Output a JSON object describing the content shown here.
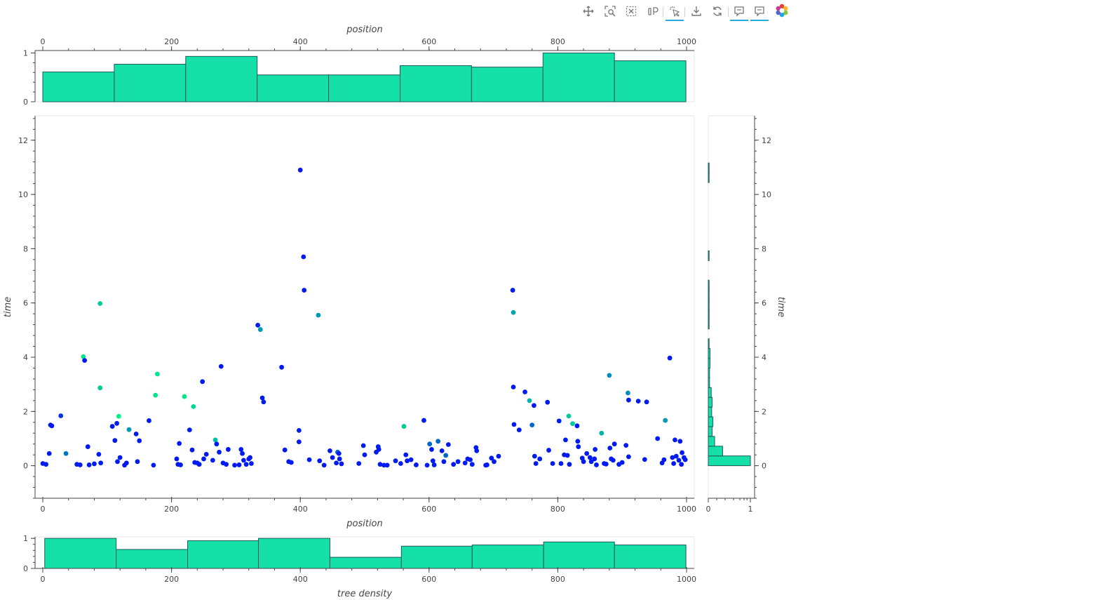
{
  "toolbar": {
    "accent": "#26aae1",
    "tools": [
      {
        "name": "pan-icon",
        "active": true
      },
      {
        "name": "box-zoom-icon",
        "active": false
      },
      {
        "name": "box-select-icon",
        "active": false
      },
      {
        "name": "lasso-select-icon",
        "active": false
      },
      {
        "name": "tap-icon",
        "active": true
      },
      {
        "name": "save-icon",
        "active": false
      },
      {
        "name": "reset-icon",
        "active": false
      },
      {
        "name": "hover-icon",
        "active": true
      },
      {
        "name": "hover-icon",
        "active": true
      },
      {
        "name": "bokeh-logo-icon",
        "active": false
      }
    ]
  },
  "colors": {
    "bar_fill": "#14e0a8",
    "bar_stroke": "#1c5a5c",
    "point_low": "#0000ff",
    "point_high": "#00ff80",
    "frame": "#e5e5e5",
    "axis": "#444444"
  },
  "chart_data": [
    {
      "id": "top-hist",
      "type": "bar",
      "xlabel": "position",
      "ylabel": "",
      "xlim": [
        -12,
        1012
      ],
      "ylim": [
        0,
        1.05
      ],
      "x_ticks": [
        0,
        200,
        400,
        600,
        800,
        1000
      ],
      "y_ticks": [
        0,
        1
      ],
      "x_axis_position": "top",
      "bins": [
        {
          "x0": 0,
          "x1": 111,
          "value": 0.61
        },
        {
          "x0": 111,
          "x1": 222,
          "value": 0.77
        },
        {
          "x0": 222,
          "x1": 333,
          "value": 0.93
        },
        {
          "x0": 333,
          "x1": 444,
          "value": 0.55
        },
        {
          "x0": 444,
          "x1": 555,
          "value": 0.55
        },
        {
          "x0": 555,
          "x1": 666,
          "value": 0.74
        },
        {
          "x0": 666,
          "x1": 777,
          "value": 0.71
        },
        {
          "x0": 777,
          "x1": 888,
          "value": 1.0
        },
        {
          "x0": 888,
          "x1": 999,
          "value": 0.84
        }
      ]
    },
    {
      "id": "scatter",
      "type": "scatter",
      "xlabel": "position",
      "ylabel": "time",
      "xlim": [
        -12,
        1012
      ],
      "ylim": [
        -1.2,
        12.9
      ],
      "x_ticks": [
        0,
        200,
        400,
        600,
        800,
        1000
      ],
      "y_ticks": [
        0,
        2,
        4,
        6,
        8,
        10,
        12
      ],
      "color_note": "point color encodes tree density (blue = low, green = high)",
      "points": [
        [
          0,
          0.08,
          0.1
        ],
        [
          5,
          0.05,
          0.1
        ],
        [
          10,
          0.45,
          0.1
        ],
        [
          12,
          1.5,
          0.1
        ],
        [
          14,
          1.47,
          0.1
        ],
        [
          28,
          1.84,
          0.2
        ],
        [
          36,
          0.45,
          0.45
        ],
        [
          53,
          0.05,
          0.1
        ],
        [
          58,
          0.03,
          0.1
        ],
        [
          63,
          4.02,
          0.9
        ],
        [
          65,
          3.88,
          0.1
        ],
        [
          70,
          0.7,
          0.1
        ],
        [
          72,
          0.03,
          0.1
        ],
        [
          80,
          0.07,
          0.1
        ],
        [
          87,
          0.42,
          0.1
        ],
        [
          89,
          5.98,
          0.8
        ],
        [
          89,
          2.87,
          0.8
        ],
        [
          90,
          0.1,
          0.1
        ],
        [
          108,
          1.45,
          0.1
        ],
        [
          112,
          0.93,
          0.1
        ],
        [
          115,
          1.56,
          0.1
        ],
        [
          116,
          0.15,
          0.1
        ],
        [
          118,
          1.82,
          0.95
        ],
        [
          120,
          0.3,
          0.1
        ],
        [
          127,
          0.02,
          0.1
        ],
        [
          130,
          0.1,
          0.1
        ],
        [
          134,
          1.33,
          0.6
        ],
        [
          145,
          1.17,
          0.1
        ],
        [
          147,
          0.15,
          0.1
        ],
        [
          150,
          0.92,
          0.1
        ],
        [
          165,
          1.66,
          0.1
        ],
        [
          172,
          0.02,
          0.1
        ],
        [
          175,
          2.6,
          0.9
        ],
        [
          178,
          3.38,
          0.9
        ],
        [
          208,
          0.25,
          0.1
        ],
        [
          210,
          0.05,
          0.1
        ],
        [
          212,
          0.82,
          0.1
        ],
        [
          214,
          0.03,
          0.1
        ],
        [
          220,
          2.55,
          0.9
        ],
        [
          228,
          1.32,
          0.1
        ],
        [
          232,
          0.58,
          0.1
        ],
        [
          234,
          2.18,
          0.85
        ],
        [
          236,
          0.12,
          0.1
        ],
        [
          240,
          0.1,
          0.1
        ],
        [
          243,
          0.05,
          0.1
        ],
        [
          248,
          3.1,
          0.1
        ],
        [
          250,
          0.25,
          0.1
        ],
        [
          254,
          0.42,
          0.1
        ],
        [
          264,
          0.2,
          0.1
        ],
        [
          268,
          0.95,
          0.75
        ],
        [
          270,
          0.8,
          0.1
        ],
        [
          274,
          0.5,
          0.1
        ],
        [
          277,
          3.66,
          0.1
        ],
        [
          280,
          0.1,
          0.1
        ],
        [
          285,
          0.05,
          0.1
        ],
        [
          288,
          0.6,
          0.1
        ],
        [
          298,
          0.02,
          0.1
        ],
        [
          305,
          0.03,
          0.1
        ],
        [
          308,
          0.6,
          0.1
        ],
        [
          310,
          0.45,
          0.1
        ],
        [
          312,
          0.2,
          0.1
        ],
        [
          316,
          0.05,
          0.1
        ],
        [
          320,
          0.25,
          0.1
        ],
        [
          322,
          0.3,
          0.1
        ],
        [
          324,
          0.08,
          0.1
        ],
        [
          334,
          5.18,
          0.1
        ],
        [
          338,
          5.02,
          0.6
        ],
        [
          341,
          2.5,
          0.1
        ],
        [
          343,
          2.35,
          0.1
        ],
        [
          371,
          3.63,
          0.1
        ],
        [
          376,
          0.58,
          0.1
        ],
        [
          382,
          0.15,
          0.1
        ],
        [
          386,
          0.12,
          0.1
        ],
        [
          398,
          1.3,
          0.1
        ],
        [
          398,
          0.88,
          0.1
        ],
        [
          400,
          10.9,
          0.1
        ],
        [
          405,
          7.7,
          0.1
        ],
        [
          406,
          6.47,
          0.1
        ],
        [
          414,
          0.22,
          0.1
        ],
        [
          428,
          5.55,
          0.6
        ],
        [
          430,
          0.18,
          0.1
        ],
        [
          437,
          0.02,
          0.1
        ],
        [
          446,
          0.55,
          0.1
        ],
        [
          450,
          0.3,
          0.1
        ],
        [
          456,
          0.1,
          0.1
        ],
        [
          458,
          0.5,
          0.4
        ],
        [
          460,
          0.45,
          0.1
        ],
        [
          461,
          0.25,
          0.1
        ],
        [
          464,
          0.07,
          0.1
        ],
        [
          491,
          0.08,
          0.1
        ],
        [
          498,
          0.74,
          0.1
        ],
        [
          500,
          0.4,
          0.1
        ],
        [
          518,
          0.5,
          0.1
        ],
        [
          521,
          0.7,
          0.1
        ],
        [
          522,
          0.6,
          0.1
        ],
        [
          524,
          0.05,
          0.1
        ],
        [
          530,
          0.02,
          0.1
        ],
        [
          535,
          0.02,
          0.1
        ],
        [
          548,
          0.18,
          0.1
        ],
        [
          556,
          0.08,
          0.1
        ],
        [
          561,
          1.45,
          0.8
        ],
        [
          564,
          0.4,
          0.1
        ],
        [
          566,
          0.18,
          0.1
        ],
        [
          572,
          0.22,
          0.1
        ],
        [
          580,
          0.03,
          0.1
        ],
        [
          592,
          1.67,
          0.1
        ],
        [
          597,
          0.02,
          0.1
        ],
        [
          601,
          0.8,
          0.4
        ],
        [
          604,
          0.6,
          0.1
        ],
        [
          606,
          0.18,
          0.1
        ],
        [
          608,
          0.03,
          0.1
        ],
        [
          614,
          0.9,
          0.4
        ],
        [
          620,
          0.55,
          0.1
        ],
        [
          623,
          0.15,
          0.1
        ],
        [
          626,
          0.38,
          0.4
        ],
        [
          630,
          0.78,
          0.1
        ],
        [
          638,
          0.05,
          0.1
        ],
        [
          645,
          0.15,
          0.1
        ],
        [
          656,
          0.1,
          0.1
        ],
        [
          660,
          0.25,
          0.1
        ],
        [
          664,
          0.22,
          0.1
        ],
        [
          667,
          0.05,
          0.1
        ],
        [
          673,
          0.67,
          0.1
        ],
        [
          674,
          0.55,
          0.1
        ],
        [
          688,
          0.02,
          0.1
        ],
        [
          690,
          0.03,
          0.1
        ],
        [
          697,
          0.28,
          0.1
        ],
        [
          701,
          0.15,
          0.1
        ],
        [
          708,
          0.35,
          0.1
        ],
        [
          730,
          6.47,
          0.1
        ],
        [
          731,
          5.65,
          0.65
        ],
        [
          731,
          2.9,
          0.1
        ],
        [
          732,
          1.52,
          0.1
        ],
        [
          740,
          1.32,
          0.1
        ],
        [
          749,
          2.72,
          0.1
        ],
        [
          756,
          2.4,
          0.7
        ],
        [
          760,
          1.5,
          0.4
        ],
        [
          763,
          2.22,
          0.1
        ],
        [
          764,
          0.35,
          0.1
        ],
        [
          766,
          0.08,
          0.1
        ],
        [
          772,
          0.25,
          0.1
        ],
        [
          784,
          2.34,
          0.1
        ],
        [
          786,
          0.57,
          0.1
        ],
        [
          792,
          0.08,
          0.1
        ],
        [
          802,
          1.65,
          0.1
        ],
        [
          805,
          0.08,
          0.1
        ],
        [
          810,
          0.4,
          0.1
        ],
        [
          812,
          0.95,
          0.1
        ],
        [
          815,
          0.38,
          0.1
        ],
        [
          818,
          0.05,
          0.1
        ],
        [
          817,
          1.83,
          0.8
        ],
        [
          823,
          1.55,
          0.8
        ],
        [
          830,
          1.47,
          0.1
        ],
        [
          831,
          0.9,
          0.1
        ],
        [
          832,
          0.7,
          0.1
        ],
        [
          838,
          0.28,
          0.1
        ],
        [
          840,
          0.15,
          0.1
        ],
        [
          845,
          0.45,
          0.1
        ],
        [
          850,
          0.3,
          0.1
        ],
        [
          852,
          0.15,
          0.1
        ],
        [
          857,
          0.25,
          0.1
        ],
        [
          858,
          0.6,
          0.1
        ],
        [
          860,
          0.03,
          0.1
        ],
        [
          868,
          1.2,
          0.7
        ],
        [
          872,
          0.08,
          0.1
        ],
        [
          875,
          0.06,
          0.1
        ],
        [
          880,
          3.33,
          0.55
        ],
        [
          881,
          0.65,
          0.1
        ],
        [
          883,
          0.25,
          0.1
        ],
        [
          886,
          0.2,
          0.1
        ],
        [
          888,
          0.8,
          0.1
        ],
        [
          895,
          0.05,
          0.1
        ],
        [
          900,
          0.12,
          0.1
        ],
        [
          906,
          0.75,
          0.1
        ],
        [
          909,
          2.68,
          0.55
        ],
        [
          910,
          2.42,
          0.1
        ],
        [
          910,
          0.33,
          0.1
        ],
        [
          925,
          2.38,
          0.1
        ],
        [
          935,
          0.23,
          0.1
        ],
        [
          938,
          2.35,
          0.1
        ],
        [
          955,
          1.0,
          0.1
        ],
        [
          962,
          0.1,
          0.1
        ],
        [
          965,
          0.22,
          0.1
        ],
        [
          967,
          1.67,
          0.6
        ],
        [
          974,
          3.97,
          0.1
        ],
        [
          978,
          0.3,
          0.1
        ],
        [
          980,
          0.08,
          0.1
        ],
        [
          982,
          0.95,
          0.1
        ],
        [
          984,
          0.35,
          0.1
        ],
        [
          988,
          0.2,
          0.1
        ],
        [
          990,
          0.9,
          0.1
        ],
        [
          992,
          0.05,
          0.1
        ],
        [
          993,
          0.48,
          0.1
        ],
        [
          996,
          0.3,
          0.1
        ],
        [
          998,
          0.22,
          0.1
        ]
      ]
    },
    {
      "id": "right-hist",
      "type": "bar",
      "orientation": "horizontal",
      "xlabel": "",
      "ylabel": "time",
      "xlim": [
        0,
        1.0
      ],
      "ylim": [
        -1.2,
        12.9
      ],
      "x_ticks": [
        0,
        1
      ],
      "y_ticks": [
        0,
        2,
        4,
        6,
        8,
        10,
        12
      ],
      "y_axis_position": "right",
      "bins": [
        {
          "y0": 0,
          "y1": 0.36,
          "value": 1.0
        },
        {
          "y0": 0.36,
          "y1": 0.72,
          "value": 0.34
        },
        {
          "y0": 0.72,
          "y1": 1.08,
          "value": 0.15
        },
        {
          "y0": 1.08,
          "y1": 1.44,
          "value": 0.09
        },
        {
          "y0": 1.44,
          "y1": 1.8,
          "value": 0.11
        },
        {
          "y0": 1.8,
          "y1": 2.16,
          "value": 0.08
        },
        {
          "y0": 2.16,
          "y1": 2.52,
          "value": 0.09
        },
        {
          "y0": 2.52,
          "y1": 2.88,
          "value": 0.07
        },
        {
          "y0": 2.88,
          "y1": 3.24,
          "value": 0.03
        },
        {
          "y0": 3.24,
          "y1": 3.6,
          "value": 0.03
        },
        {
          "y0": 3.6,
          "y1": 3.96,
          "value": 0.04
        },
        {
          "y0": 3.96,
          "y1": 4.32,
          "value": 0.04
        },
        {
          "y0": 4.32,
          "y1": 4.68,
          "value": 0.02
        },
        {
          "y0": 5.04,
          "y1": 5.4,
          "value": 0.02
        },
        {
          "y0": 5.4,
          "y1": 5.76,
          "value": 0.02
        },
        {
          "y0": 5.76,
          "y1": 6.12,
          "value": 0.02
        },
        {
          "y0": 6.12,
          "y1": 6.48,
          "value": 0.02
        },
        {
          "y0": 6.48,
          "y1": 6.84,
          "value": 0.02
        },
        {
          "y0": 7.56,
          "y1": 7.92,
          "value": 0.02
        },
        {
          "y0": 10.44,
          "y1": 10.8,
          "value": 0.02
        },
        {
          "y0": 10.8,
          "y1": 11.16,
          "value": 0.02
        }
      ]
    },
    {
      "id": "bottom-hist",
      "type": "bar",
      "xlabel": "tree density",
      "ylabel": "",
      "xlim": [
        -12,
        1012
      ],
      "ylim": [
        0,
        1.05
      ],
      "x_ticks": [
        0,
        200,
        400,
        600,
        800,
        1000
      ],
      "y_ticks": [
        0,
        1
      ],
      "bins": [
        {
          "x0": 3,
          "x1": 114,
          "value": 1.0
        },
        {
          "x0": 114,
          "x1": 225,
          "value": 0.63
        },
        {
          "x0": 225,
          "x1": 335,
          "value": 0.92
        },
        {
          "x0": 335,
          "x1": 446,
          "value": 1.0
        },
        {
          "x0": 446,
          "x1": 557,
          "value": 0.37
        },
        {
          "x0": 557,
          "x1": 667,
          "value": 0.74
        },
        {
          "x0": 667,
          "x1": 778,
          "value": 0.78
        },
        {
          "x0": 778,
          "x1": 888,
          "value": 0.88
        },
        {
          "x0": 888,
          "x1": 999,
          "value": 0.78
        }
      ]
    }
  ]
}
